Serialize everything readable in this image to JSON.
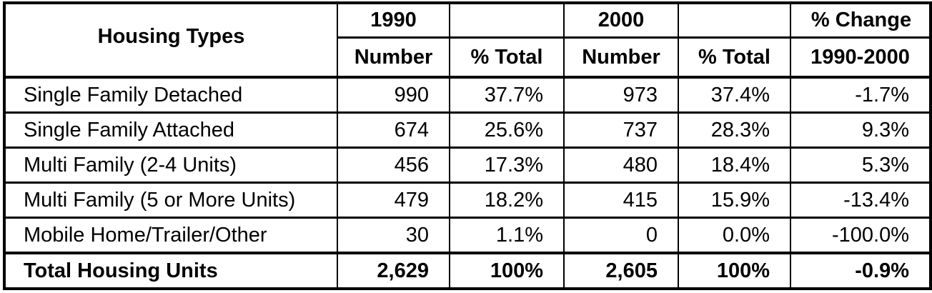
{
  "table": {
    "header": {
      "row_label": "Housing Types",
      "group_1990": "1990",
      "group_1990_spacer": "",
      "group_2000": "2000",
      "group_2000_spacer": "",
      "pct_change_line1": "% Change",
      "number_1990": "Number",
      "pct_total_1990": "% Total",
      "number_2000": "Number",
      "pct_total_2000": "% Total",
      "pct_change_line2": "1990-2000"
    },
    "rows": [
      {
        "type": "Single Family Detached",
        "n1990": "990",
        "p1990": "37.7%",
        "n2000": "973",
        "p2000": "37.4%",
        "change": "-1.7%"
      },
      {
        "type": "Single Family Attached",
        "n1990": "674",
        "p1990": "25.6%",
        "n2000": "737",
        "p2000": "28.3%",
        "change": "9.3%"
      },
      {
        "type": "Multi Family (2-4 Units)",
        "n1990": "456",
        "p1990": "17.3%",
        "n2000": "480",
        "p2000": "18.4%",
        "change": "5.3%"
      },
      {
        "type": "Multi Family (5 or More Units)",
        "n1990": "479",
        "p1990": "18.2%",
        "n2000": "415",
        "p2000": "15.9%",
        "change": "-13.4%"
      },
      {
        "type": "Mobile Home/Trailer/Other",
        "n1990": "30",
        "p1990": "1.1%",
        "n2000": "0",
        "p2000": "0.0%",
        "change": "-100.0%"
      }
    ],
    "total": {
      "type": "Total Housing Units",
      "n1990": "2,629",
      "p1990": "100%",
      "n2000": "2,605",
      "p2000": "100%",
      "change": "-0.9%"
    }
  },
  "chart_data": {
    "type": "table",
    "title": "",
    "columns": [
      "Housing Types",
      "1990 Number",
      "1990 % Total",
      "2000 Number",
      "2000 % Total",
      "% Change 1990-2000"
    ],
    "rows": [
      [
        "Single Family Detached",
        990,
        "37.7%",
        973,
        "37.4%",
        "-1.7%"
      ],
      [
        "Single Family Attached",
        674,
        "25.6%",
        737,
        "28.3%",
        "9.3%"
      ],
      [
        "Multi Family (2-4 Units)",
        456,
        "17.3%",
        480,
        "18.4%",
        "5.3%"
      ],
      [
        "Multi Family (5 or More Units)",
        479,
        "18.2%",
        415,
        "15.9%",
        "-13.4%"
      ],
      [
        "Mobile Home/Trailer/Other",
        30,
        "1.1%",
        0,
        "0.0%",
        "-100.0%"
      ],
      [
        "Total Housing Units",
        2629,
        "100%",
        2605,
        "100%",
        "-0.9%"
      ]
    ]
  }
}
